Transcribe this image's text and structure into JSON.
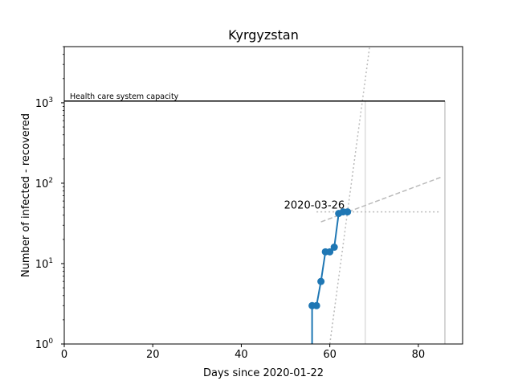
{
  "chart_data": {
    "type": "line",
    "title": "Kyrgyzstan",
    "xlabel": "Days since 2020-01-22",
    "ylabel": "Number of infected - recovered",
    "xlim": [
      0,
      90
    ],
    "ylim": [
      1,
      5000
    ],
    "yscale": "log",
    "x_ticks": [
      0,
      20,
      40,
      60,
      80
    ],
    "y_ticks": [
      {
        "value": 1,
        "base": "10",
        "exp": "0"
      },
      {
        "value": 10,
        "base": "10",
        "exp": "1"
      },
      {
        "value": 100,
        "base": "10",
        "exp": "2"
      },
      {
        "value": 1000,
        "base": "10",
        "exp": "3"
      }
    ],
    "grid": false,
    "series": [
      {
        "color": "#1f77b4",
        "marker": "circle",
        "x": [
          56,
          57,
          58,
          59,
          60,
          61,
          62,
          63,
          64
        ],
        "y": [
          3,
          3,
          6,
          14,
          14,
          16,
          42,
          44,
          44
        ]
      }
    ],
    "capacity": {
      "label": "Health care system capacity",
      "value": 1050,
      "x_end": 86
    },
    "fit_dashed": {
      "x": [
        58,
        85
      ],
      "y": [
        33,
        118
      ],
      "color": "#bbbbbb"
    },
    "fit_dotted": {
      "x": [
        60,
        69
      ],
      "y": [
        1,
        5000
      ],
      "color": "#bbbbbb"
    },
    "hline_dotted": {
      "x": [
        57,
        85
      ],
      "y": 44,
      "color": "#bbbbbb"
    },
    "vlines": [
      {
        "x": 68,
        "color": "#dddddd"
      },
      {
        "x": 86,
        "color": "#c8c8c8"
      }
    ],
    "annotation": {
      "text": "2020-03-26",
      "x": 63,
      "y": 44
    }
  }
}
